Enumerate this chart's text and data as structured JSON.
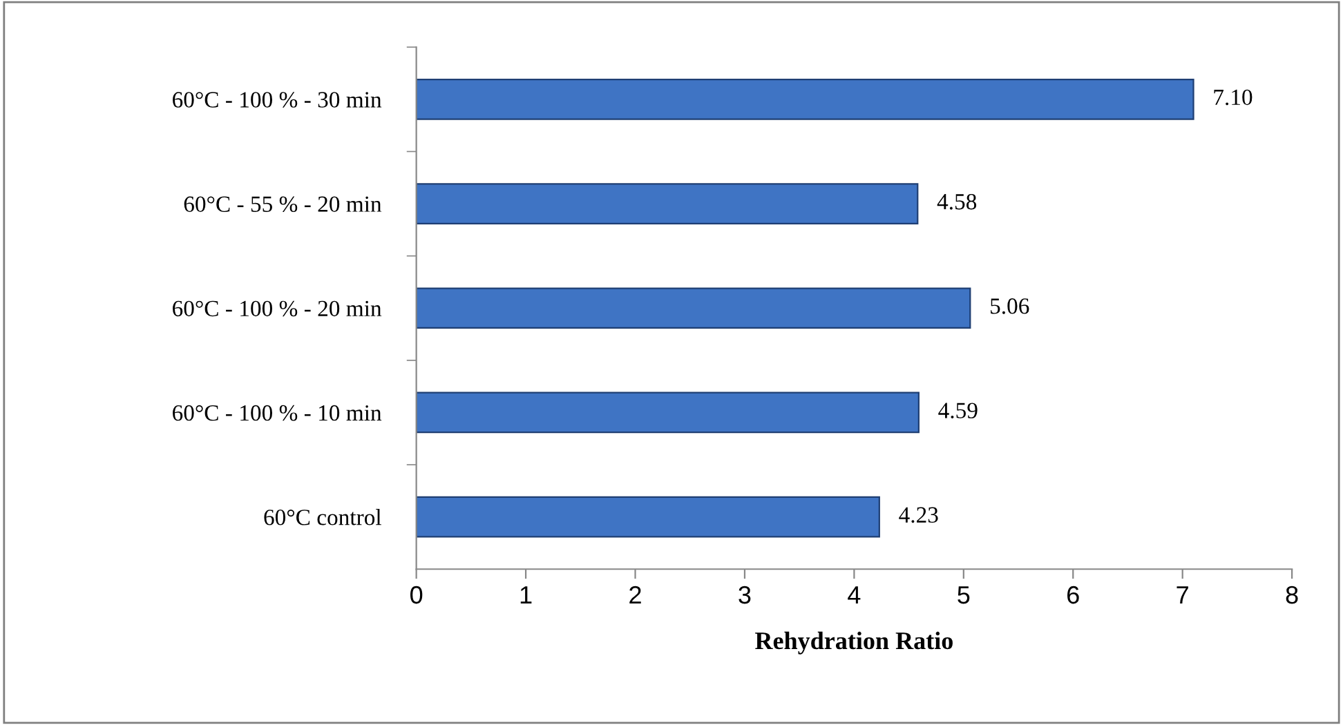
{
  "chart_data": {
    "type": "bar",
    "orientation": "horizontal",
    "xlabel": "Rehydration Ratio",
    "categories": [
      "60°C - 100 % - 30 min",
      "60°C - 55 % - 20 min",
      "60°C - 100 % - 20 min",
      "60°C - 100 % - 10 min",
      "60°C control"
    ],
    "values": [
      7.1,
      4.58,
      5.06,
      4.59,
      4.23
    ],
    "value_labels": [
      "7.10",
      "4.58",
      "5.06",
      "4.59",
      "4.23"
    ],
    "color": "#3f74c4",
    "xlim": [
      0,
      8
    ],
    "xticks": [
      0,
      1,
      2,
      3,
      4,
      5,
      6,
      7,
      8
    ],
    "grid": false,
    "legend": false
  }
}
